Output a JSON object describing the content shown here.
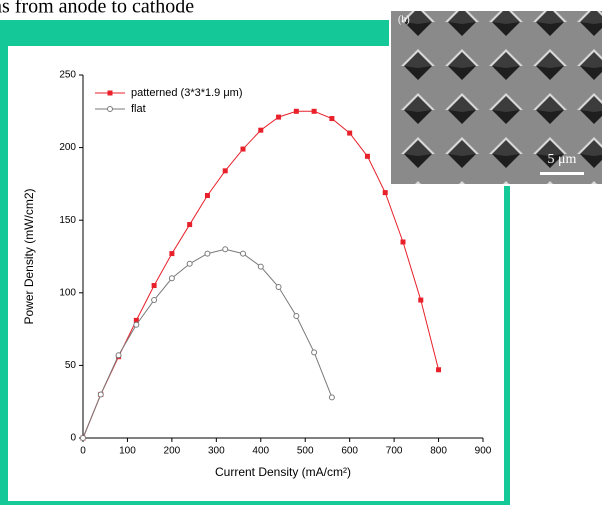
{
  "header": {
    "text": "ns from anode to cathode"
  },
  "inset": {
    "panel_label": "(b)",
    "scale_bar": "5 μm"
  },
  "chart_data": {
    "type": "line",
    "xlabel": "Current Density (mA/cm²)",
    "ylabel": "Power Density (mW/cm2)",
    "x": [
      0,
      40,
      80,
      120,
      160,
      200,
      240,
      280,
      320,
      360,
      400,
      440,
      480,
      520,
      560,
      600,
      640,
      680,
      720,
      760,
      800
    ],
    "series": [
      {
        "name": "patterned (3*3*1.9 μm)",
        "color": "#e8202a",
        "marker": "square",
        "values": [
          0,
          30,
          56,
          81,
          105,
          127,
          147,
          167,
          184,
          199,
          212,
          221,
          225,
          225,
          220,
          210,
          194,
          169,
          135,
          95,
          47
        ]
      },
      {
        "name": "flat",
        "color": "#7a7a7a",
        "marker": "circle",
        "values": [
          0,
          30,
          57,
          78,
          95,
          110,
          120,
          127,
          130,
          127,
          118,
          104,
          84,
          59,
          28,
          null,
          null,
          null,
          null,
          null,
          null
        ]
      }
    ],
    "xlim": [
      0,
      900
    ],
    "xticks": [
      0,
      100,
      200,
      300,
      400,
      500,
      600,
      700,
      800,
      900
    ],
    "ylim": [
      0,
      250
    ],
    "yticks": [
      0,
      50,
      100,
      150,
      200,
      250
    ],
    "legend": "upper left"
  }
}
